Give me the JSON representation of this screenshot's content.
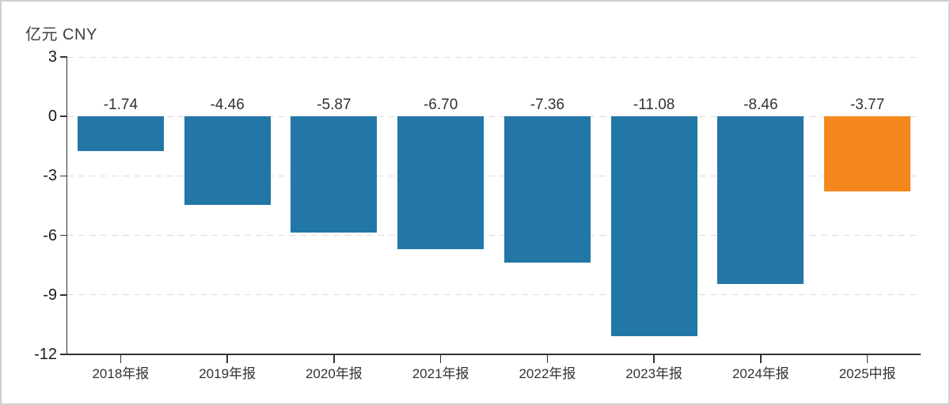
{
  "chart_data": {
    "type": "bar",
    "unit_label": "亿元 CNY",
    "categories": [
      "2018年报",
      "2019年报",
      "2020年报",
      "2021年报",
      "2022年报",
      "2023年报",
      "2024年报",
      "2025中报"
    ],
    "values": [
      -1.74,
      -4.46,
      -5.87,
      -6.7,
      -7.36,
      -11.08,
      -8.46,
      -3.77
    ],
    "value_labels": [
      "-1.74",
      "-4.46",
      "-5.87",
      "-6.70",
      "-7.36",
      "-11.08",
      "-8.46",
      "-3.77"
    ],
    "bar_colors": [
      "#2277a6",
      "#2277a6",
      "#2277a6",
      "#2277a6",
      "#2277a6",
      "#2277a6",
      "#2277a6",
      "#f6871d"
    ],
    "ylim": [
      -12,
      3
    ],
    "yticks": [
      3,
      0,
      -3,
      -6,
      -9,
      -12
    ],
    "grid": "horizontal-dashed",
    "legend": "none",
    "colors": {
      "bar_default": "#2277a6",
      "bar_highlight": "#f6871d",
      "axis": "#333333",
      "gridline": "#dcdcdc",
      "text": "#333333",
      "border": "#cfcfcf",
      "background": "#ffffff"
    }
  }
}
